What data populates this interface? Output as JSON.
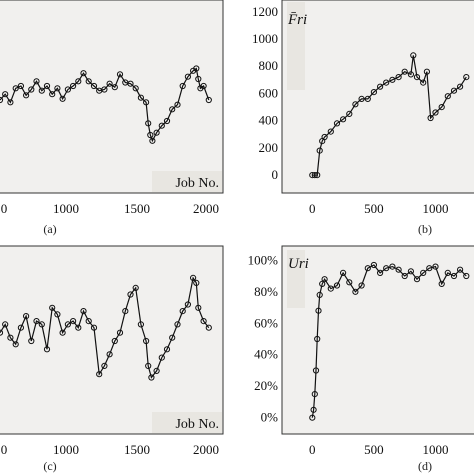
{
  "chart_data": [
    {
      "id": "a",
      "type": "line",
      "caption": "(a)",
      "xlabel": "Job No.",
      "ylabel": "",
      "xlim": [
        0,
        2050
      ],
      "x_ticks": [
        "0",
        "1000",
        "1500",
        "2000"
      ],
      "y_ticks": [],
      "ylim": [
        0,
        1200
      ],
      "grid": false,
      "series": [
        {
          "x": [
            0,
            50,
            100,
            150,
            200,
            250,
            300,
            350,
            400,
            450,
            500,
            550,
            600,
            650,
            700,
            750,
            800,
            850,
            900,
            950,
            1000,
            1050,
            1100,
            1150,
            1200,
            1250,
            1300,
            1350,
            1400,
            1420,
            1440,
            1460,
            1500,
            1550,
            1600,
            1650,
            1700,
            1750,
            1800,
            1850,
            1880,
            1900,
            1920,
            1950,
            2000
          ],
          "values": [
            600,
            650,
            580,
            700,
            720,
            640,
            690,
            760,
            680,
            720,
            650,
            700,
            610,
            690,
            720,
            760,
            830,
            760,
            720,
            680,
            690,
            740,
            710,
            820,
            750,
            740,
            700,
            620,
            580,
            400,
            300,
            250,
            320,
            380,
            420,
            520,
            560,
            720,
            800,
            850,
            870,
            780,
            700,
            720,
            600
          ]
        }
      ]
    },
    {
      "id": "b",
      "type": "line",
      "caption": "(b)",
      "xlabel": "",
      "ylabel": "F̄ri",
      "xlim": [
        -100,
        1280
      ],
      "ylim": [
        -80,
        1250
      ],
      "x_ticks": [
        0,
        500,
        1000
      ],
      "y_ticks": [
        0,
        200,
        400,
        600,
        800,
        1000,
        1200
      ],
      "grid": false,
      "series": [
        {
          "x": [
            0,
            20,
            40,
            60,
            80,
            100,
            150,
            200,
            250,
            300,
            350,
            400,
            450,
            500,
            550,
            600,
            650,
            700,
            750,
            800,
            820,
            850,
            900,
            930,
            960,
            1000,
            1050,
            1100,
            1150,
            1200,
            1250
          ],
          "values": [
            0,
            0,
            0,
            180,
            250,
            280,
            320,
            380,
            410,
            450,
            520,
            560,
            560,
            610,
            650,
            680,
            700,
            720,
            760,
            740,
            880,
            720,
            680,
            760,
            420,
            460,
            500,
            580,
            620,
            650,
            720
          ]
        }
      ]
    },
    {
      "id": "c",
      "type": "line",
      "caption": "(c)",
      "xlabel": "Job No.",
      "ylabel": "",
      "xlim": [
        0,
        2050
      ],
      "x_ticks": [
        "0",
        "1000",
        "1500",
        "2000"
      ],
      "y_ticks": [],
      "ylim": [
        0,
        100
      ],
      "grid": false,
      "series": [
        {
          "x": [
            0,
            50,
            100,
            150,
            200,
            250,
            300,
            350,
            400,
            450,
            500,
            550,
            600,
            650,
            700,
            750,
            800,
            850,
            900,
            950,
            1000,
            1050,
            1100,
            1150,
            1200,
            1250,
            1300,
            1350,
            1400,
            1420,
            1450,
            1500,
            1550,
            1600,
            1650,
            1700,
            1750,
            1800,
            1850,
            1880,
            1900,
            1950,
            2000
          ],
          "values": [
            55,
            60,
            52,
            48,
            58,
            65,
            50,
            62,
            60,
            45,
            70,
            66,
            55,
            60,
            62,
            58,
            68,
            62,
            58,
            30,
            35,
            42,
            50,
            55,
            68,
            78,
            82,
            60,
            50,
            35,
            28,
            32,
            40,
            45,
            52,
            60,
            68,
            72,
            88,
            85,
            70,
            62,
            58
          ]
        }
      ]
    },
    {
      "id": "d",
      "type": "line",
      "caption": "(d)",
      "xlabel": "",
      "ylabel": "Uri",
      "xlim": [
        -100,
        1280
      ],
      "ylim": [
        -4,
        104
      ],
      "x_ticks": [
        0,
        500,
        1000
      ],
      "y_ticks": [
        "0%",
        "20%",
        "40%",
        "60%",
        "80%",
        "100%"
      ],
      "grid": false,
      "series": [
        {
          "x": [
            0,
            10,
            20,
            30,
            40,
            50,
            60,
            80,
            100,
            150,
            200,
            250,
            300,
            350,
            400,
            450,
            500,
            550,
            600,
            650,
            700,
            750,
            800,
            850,
            900,
            950,
            1000,
            1050,
            1100,
            1150,
            1200,
            1250
          ],
          "values": [
            0,
            5,
            15,
            30,
            50,
            68,
            78,
            85,
            88,
            82,
            84,
            92,
            86,
            80,
            84,
            95,
            97,
            92,
            95,
            96,
            94,
            90,
            93,
            88,
            92,
            95,
            96,
            85,
            92,
            90,
            94,
            90
          ]
        }
      ]
    }
  ]
}
